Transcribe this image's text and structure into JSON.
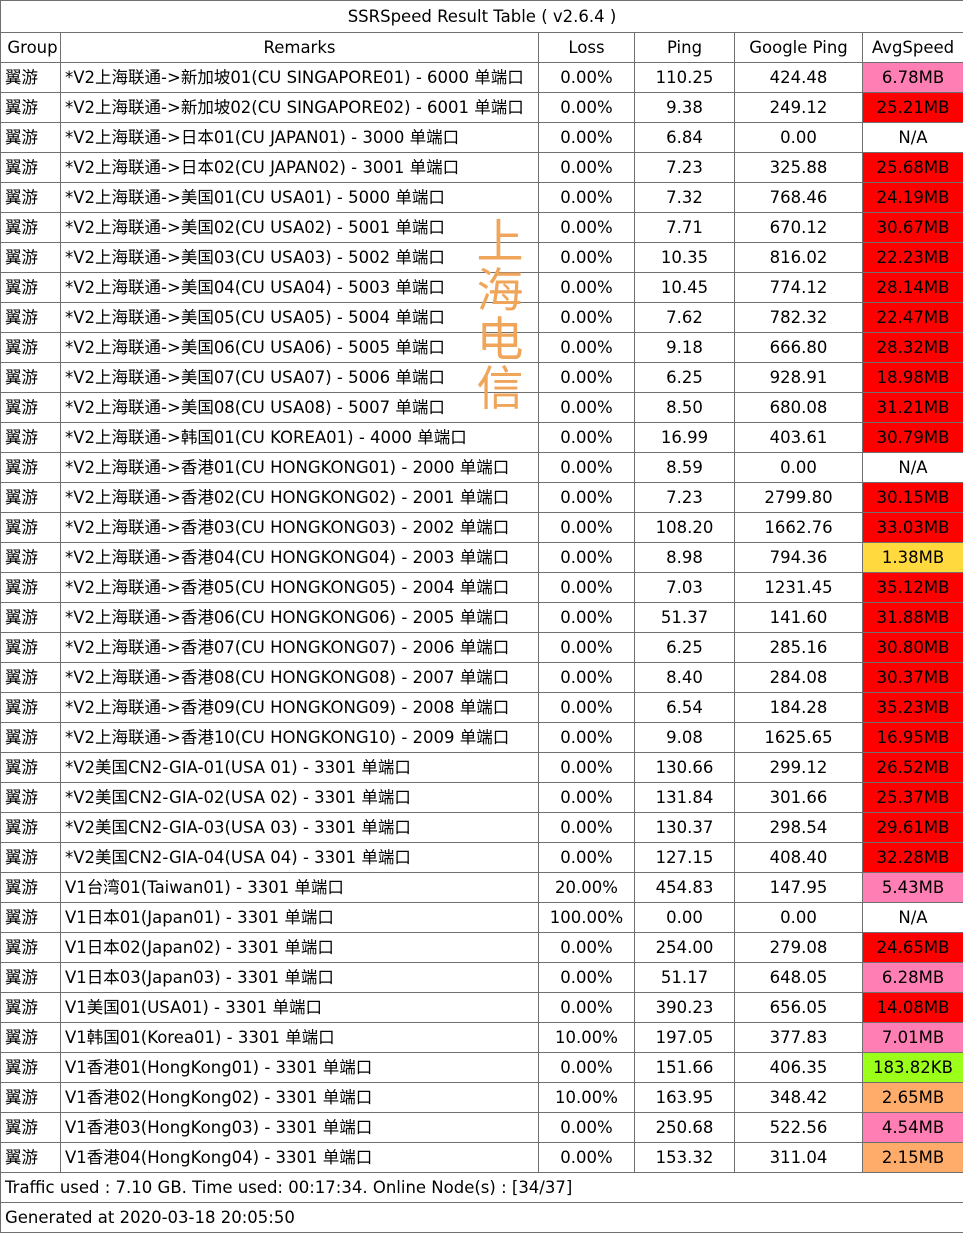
{
  "title": "SSRSpeed Result Table ( v2.6.4 )",
  "headers": {
    "group": "Group",
    "remarks": "Remarks",
    "loss": "Loss",
    "ping": "Ping",
    "google_ping": "Google Ping",
    "avg_speed": "AvgSpeed"
  },
  "speed_colors": {
    "red": "#ff0000",
    "pink": "#ff7eb3",
    "white": "#ffffff",
    "yellow": "#ffd93d",
    "green": "#9cff1a",
    "orange": "#ffac6b"
  },
  "rows": [
    {
      "group": "翼游",
      "remark": "*V2上海联通->新加坡01(CU SINGAPORE01) - 6000 单端口",
      "loss": "0.00%",
      "ping": "110.25",
      "gping": "424.48",
      "speed": "6.78MB",
      "color": "#ff7eb3"
    },
    {
      "group": "翼游",
      "remark": "*V2上海联通->新加坡02(CU SINGAPORE02) - 6001 单端口",
      "loss": "0.00%",
      "ping": "9.38",
      "gping": "249.12",
      "speed": "25.21MB",
      "color": "#ff0000"
    },
    {
      "group": "翼游",
      "remark": "*V2上海联通->日本01(CU JAPAN01) - 3000 单端口",
      "loss": "0.00%",
      "ping": "6.84",
      "gping": "0.00",
      "speed": "N/A",
      "color": "#ffffff"
    },
    {
      "group": "翼游",
      "remark": "*V2上海联通->日本02(CU JAPAN02) - 3001 单端口",
      "loss": "0.00%",
      "ping": "7.23",
      "gping": "325.88",
      "speed": "25.68MB",
      "color": "#ff0000"
    },
    {
      "group": "翼游",
      "remark": "*V2上海联通->美国01(CU USA01) - 5000 单端口",
      "loss": "0.00%",
      "ping": "7.32",
      "gping": "768.46",
      "speed": "24.19MB",
      "color": "#ff0000"
    },
    {
      "group": "翼游",
      "remark": "*V2上海联通->美国02(CU USA02) - 5001 单端口",
      "loss": "0.00%",
      "ping": "7.71",
      "gping": "670.12",
      "speed": "30.67MB",
      "color": "#ff0000"
    },
    {
      "group": "翼游",
      "remark": "*V2上海联通->美国03(CU USA03) - 5002 单端口",
      "loss": "0.00%",
      "ping": "10.35",
      "gping": "816.02",
      "speed": "22.23MB",
      "color": "#ff0000"
    },
    {
      "group": "翼游",
      "remark": "*V2上海联通->美国04(CU USA04) - 5003 单端口",
      "loss": "0.00%",
      "ping": "10.45",
      "gping": "774.12",
      "speed": "28.14MB",
      "color": "#ff0000"
    },
    {
      "group": "翼游",
      "remark": "*V2上海联通->美国05(CU USA05) - 5004 单端口",
      "loss": "0.00%",
      "ping": "7.62",
      "gping": "782.32",
      "speed": "22.47MB",
      "color": "#ff0000"
    },
    {
      "group": "翼游",
      "remark": "*V2上海联通->美国06(CU USA06) - 5005 单端口",
      "loss": "0.00%",
      "ping": "9.18",
      "gping": "666.80",
      "speed": "28.32MB",
      "color": "#ff0000"
    },
    {
      "group": "翼游",
      "remark": "*V2上海联通->美国07(CU USA07) - 5006 单端口",
      "loss": "0.00%",
      "ping": "6.25",
      "gping": "928.91",
      "speed": "18.98MB",
      "color": "#ff0000"
    },
    {
      "group": "翼游",
      "remark": "*V2上海联通->美国08(CU USA08) - 5007 单端口",
      "loss": "0.00%",
      "ping": "8.50",
      "gping": "680.08",
      "speed": "31.21MB",
      "color": "#ff0000"
    },
    {
      "group": "翼游",
      "remark": "*V2上海联通->韩国01(CU KOREA01) - 4000 单端口",
      "loss": "0.00%",
      "ping": "16.99",
      "gping": "403.61",
      "speed": "30.79MB",
      "color": "#ff0000"
    },
    {
      "group": "翼游",
      "remark": "*V2上海联通->香港01(CU HONGKONG01) - 2000 单端口",
      "loss": "0.00%",
      "ping": "8.59",
      "gping": "0.00",
      "speed": "N/A",
      "color": "#ffffff"
    },
    {
      "group": "翼游",
      "remark": "*V2上海联通->香港02(CU HONGKONG02) - 2001 单端口",
      "loss": "0.00%",
      "ping": "7.23",
      "gping": "2799.80",
      "speed": "30.15MB",
      "color": "#ff0000"
    },
    {
      "group": "翼游",
      "remark": "*V2上海联通->香港03(CU HONGKONG03) - 2002 单端口",
      "loss": "0.00%",
      "ping": "108.20",
      "gping": "1662.76",
      "speed": "33.03MB",
      "color": "#ff0000"
    },
    {
      "group": "翼游",
      "remark": "*V2上海联通->香港04(CU HONGKONG04) - 2003 单端口",
      "loss": "0.00%",
      "ping": "8.98",
      "gping": "794.36",
      "speed": "1.38MB",
      "color": "#ffd93d"
    },
    {
      "group": "翼游",
      "remark": "*V2上海联通->香港05(CU HONGKONG05) - 2004 单端口",
      "loss": "0.00%",
      "ping": "7.03",
      "gping": "1231.45",
      "speed": "35.12MB",
      "color": "#ff0000"
    },
    {
      "group": "翼游",
      "remark": "*V2上海联通->香港06(CU HONGKONG06) - 2005 单端口",
      "loss": "0.00%",
      "ping": "51.37",
      "gping": "141.60",
      "speed": "31.88MB",
      "color": "#ff0000"
    },
    {
      "group": "翼游",
      "remark": "*V2上海联通->香港07(CU HONGKONG07) - 2006 单端口",
      "loss": "0.00%",
      "ping": "6.25",
      "gping": "285.16",
      "speed": "30.80MB",
      "color": "#ff0000"
    },
    {
      "group": "翼游",
      "remark": "*V2上海联通->香港08(CU HONGKONG08) - 2007 单端口",
      "loss": "0.00%",
      "ping": "8.40",
      "gping": "284.08",
      "speed": "30.37MB",
      "color": "#ff0000"
    },
    {
      "group": "翼游",
      "remark": "*V2上海联通->香港09(CU HONGKONG09) - 2008 单端口",
      "loss": "0.00%",
      "ping": "6.54",
      "gping": "184.28",
      "speed": "35.23MB",
      "color": "#ff0000"
    },
    {
      "group": "翼游",
      "remark": "*V2上海联通->香港10(CU HONGKONG10) - 2009 单端口",
      "loss": "0.00%",
      "ping": "9.08",
      "gping": "1625.65",
      "speed": "16.95MB",
      "color": "#ff0000"
    },
    {
      "group": "翼游",
      "remark": "*V2美国CN2-GIA-01(USA 01) - 3301 单端口",
      "loss": "0.00%",
      "ping": "130.66",
      "gping": "299.12",
      "speed": "26.52MB",
      "color": "#ff0000"
    },
    {
      "group": "翼游",
      "remark": "*V2美国CN2-GIA-02(USA 02) - 3301 单端口",
      "loss": "0.00%",
      "ping": "131.84",
      "gping": "301.66",
      "speed": "25.37MB",
      "color": "#ff0000"
    },
    {
      "group": "翼游",
      "remark": "*V2美国CN2-GIA-03(USA 03) - 3301 单端口",
      "loss": "0.00%",
      "ping": "130.37",
      "gping": "298.54",
      "speed": "29.61MB",
      "color": "#ff0000"
    },
    {
      "group": "翼游",
      "remark": "*V2美国CN2-GIA-04(USA 04) - 3301 单端口",
      "loss": "0.00%",
      "ping": "127.15",
      "gping": "408.40",
      "speed": "32.28MB",
      "color": "#ff0000"
    },
    {
      "group": "翼游",
      "remark": "V1台湾01(Taiwan01) - 3301 单端口",
      "loss": "20.00%",
      "ping": "454.83",
      "gping": "147.95",
      "speed": "5.43MB",
      "color": "#ff7eb3"
    },
    {
      "group": "翼游",
      "remark": "V1日本01(Japan01) - 3301 单端口",
      "loss": "100.00%",
      "ping": "0.00",
      "gping": "0.00",
      "speed": "N/A",
      "color": "#ffffff"
    },
    {
      "group": "翼游",
      "remark": "V1日本02(Japan02) - 3301 单端口",
      "loss": "0.00%",
      "ping": "254.00",
      "gping": "279.08",
      "speed": "24.65MB",
      "color": "#ff0000"
    },
    {
      "group": "翼游",
      "remark": "V1日本03(Japan03) - 3301 单端口",
      "loss": "0.00%",
      "ping": "51.17",
      "gping": "648.05",
      "speed": "6.28MB",
      "color": "#ff7eb3"
    },
    {
      "group": "翼游",
      "remark": "V1美国01(USA01) - 3301 单端口",
      "loss": "0.00%",
      "ping": "390.23",
      "gping": "656.05",
      "speed": "14.08MB",
      "color": "#ff0000"
    },
    {
      "group": "翼游",
      "remark": "V1韩国01(Korea01) - 3301 单端口",
      "loss": "10.00%",
      "ping": "197.05",
      "gping": "377.83",
      "speed": "7.01MB",
      "color": "#ff7eb3"
    },
    {
      "group": "翼游",
      "remark": "V1香港01(HongKong01)  - 3301 单端口",
      "loss": "0.00%",
      "ping": "151.66",
      "gping": "406.35",
      "speed": "183.82KB",
      "color": "#9cff1a"
    },
    {
      "group": "翼游",
      "remark": "V1香港02(HongKong02) - 3301 单端口",
      "loss": "10.00%",
      "ping": "163.95",
      "gping": "348.42",
      "speed": "2.65MB",
      "color": "#ffac6b"
    },
    {
      "group": "翼游",
      "remark": "V1香港03(HongKong03) - 3301 单端口",
      "loss": "0.00%",
      "ping": "250.68",
      "gping": "522.56",
      "speed": "4.54MB",
      "color": "#ff7eb3"
    },
    {
      "group": "翼游",
      "remark": "V1香港04(HongKong04) - 3301 单端口",
      "loss": "0.00%",
      "ping": "153.32",
      "gping": "311.04",
      "speed": "2.15MB",
      "color": "#ffac6b"
    }
  ],
  "footer": {
    "traffic": "Traffic used : 7.10 GB. Time used: 00:17:34. Online Node(s) : [34/37]",
    "generated": "Generated at 2020-03-18 20:05:50"
  },
  "watermark": {
    "chars": [
      "上",
      "海",
      "电",
      "信"
    ],
    "color": "#f0a65a"
  }
}
